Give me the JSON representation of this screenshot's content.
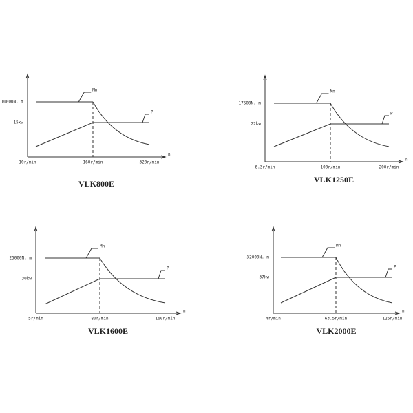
{
  "panels": [
    {
      "title": "VLK800E",
      "torque_label": "10000N. m",
      "power_label": "15kw",
      "speed_labels": [
        "10r/min",
        "160r/min",
        "320r/min"
      ],
      "torque_curve_label": "Mn",
      "power_curve_label": "P",
      "axis_label": "n"
    },
    {
      "title": "VLK1250E",
      "torque_label": "17500N. m",
      "power_label": "22kw",
      "speed_labels": [
        "6.3r/min",
        "100r/min",
        "200r/min"
      ],
      "torque_curve_label": "Mn",
      "power_curve_label": "P",
      "axis_label": "n"
    },
    {
      "title": "VLK1600E",
      "torque_label": "25000N. m",
      "power_label": "30kw",
      "speed_labels": [
        "5r/min",
        "80r/min",
        "160r/min"
      ],
      "torque_curve_label": "Mn",
      "power_curve_label": "P",
      "axis_label": "n"
    },
    {
      "title": "VLK2000E",
      "torque_label": "32000N. m",
      "power_label": "37kw",
      "speed_labels": [
        "4r/min",
        "63.5r/min",
        "125r/min"
      ],
      "torque_curve_label": "Mn",
      "power_curve_label": "P",
      "axis_label": "n"
    }
  ]
}
